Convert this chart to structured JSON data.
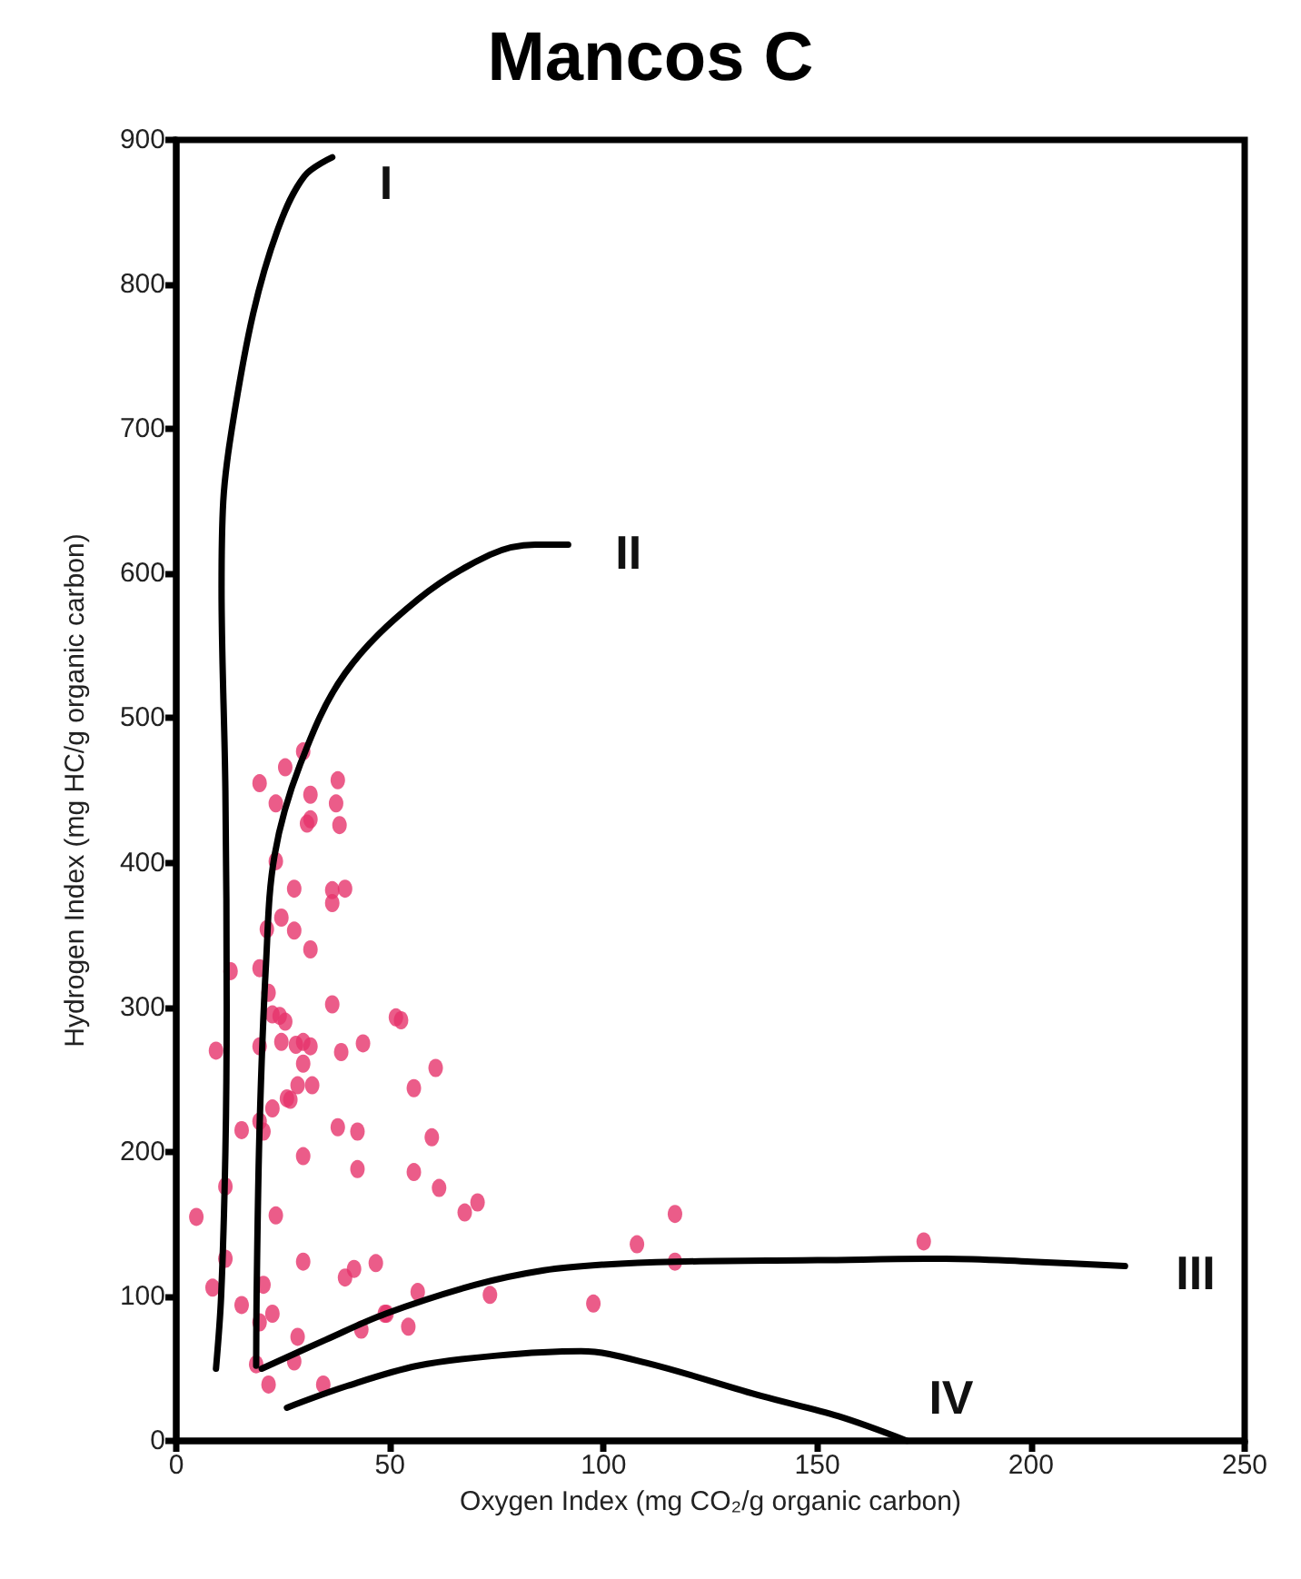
{
  "chart_data": {
    "type": "scatter",
    "title": "Mancos C",
    "xlabel": "Oxygen Index (mg CO₂/g organic carbon)",
    "ylabel": "Hydrogen Index (mg HC/g organic carbon)",
    "xlim": [
      0,
      250
    ],
    "xticks": [
      0,
      50,
      100,
      150,
      200,
      250
    ],
    "ylim": [
      0,
      900
    ],
    "yticks": [
      0,
      100,
      200,
      300,
      400,
      500,
      600,
      700,
      800,
      900
    ],
    "grid": false,
    "marker": "circle",
    "series": [
      {
        "color": "#e6336b",
        "x": [
          29.7,
          25.5,
          19.5,
          37.8,
          31.4,
          23.3,
          37.4,
          31.4,
          30.6,
          38.2,
          23.3,
          27.6,
          36.5,
          39.5,
          36.5,
          24.6,
          21.2,
          27.6,
          31.4,
          12.7,
          19.5,
          21.6,
          22.5,
          24.2,
          25.5,
          36.5,
          9.3,
          19.5,
          24.6,
          28,
          29.7,
          31.4,
          38.6,
          43.7,
          29.7,
          51.4,
          28.4,
          31.8,
          25.9,
          26.7,
          22.5,
          15.3,
          19.5,
          20.4,
          37.8,
          42.4,
          29.7,
          42.4,
          11.5,
          4.7,
          23.3,
          11.5,
          29.7,
          39.5,
          41.6,
          46.7,
          8.5,
          20.4,
          15.3,
          22.5,
          19.5,
          28.4,
          43.3,
          49.2,
          18.7,
          27.6,
          21.6,
          34.4,
          52.6,
          60.7,
          55.6,
          59.8,
          55.6,
          61.5,
          67.5,
          70.5,
          116.7,
          107.8,
          174.9,
          116.7,
          56.5,
          73.4,
          97.6,
          48.8,
          54.3
        ],
        "values": [
          477,
          466,
          455,
          457,
          447,
          441,
          441,
          430,
          427,
          426,
          401,
          382,
          381,
          382,
          372,
          362,
          354,
          353,
          340,
          325,
          327,
          310,
          295,
          294,
          290,
          302,
          270,
          273,
          276,
          274,
          276,
          273,
          269,
          275,
          261,
          293,
          246,
          246,
          237,
          236,
          230,
          215,
          221,
          214,
          217,
          214,
          197,
          188,
          176,
          155,
          156,
          126,
          124,
          113,
          119,
          123,
          106,
          108,
          94,
          88,
          82,
          72,
          77,
          88,
          53,
          55,
          39,
          39,
          291,
          258,
          244,
          210,
          186,
          175,
          158,
          165,
          157,
          136,
          138,
          124,
          103,
          101,
          95,
          88,
          79
        ]
      },
      {
        "type": "line",
        "name": "I",
        "color": "#000000",
        "marker": "none",
        "x": [
          9.3,
          10.5,
          11.5,
          11.8,
          11.5,
          10.6,
          11,
          13,
          18,
          24,
          30,
          36.5
        ],
        "values": [
          50,
          100,
          200,
          300,
          450,
          590,
          650,
          700,
          780,
          840,
          875,
          888
        ]
      },
      {
        "type": "line",
        "name": "II",
        "color": "#000000",
        "marker": "none",
        "x": [
          18.7,
          18.8,
          19.5,
          21,
          23,
          29,
          39.5,
          56.5,
          73.4,
          84,
          91.7
        ],
        "values": [
          52,
          100,
          217,
          330,
          405,
          468,
          531,
          582,
          613,
          620,
          620
        ]
      },
      {
        "type": "line",
        "name": "III",
        "color": "#000000",
        "marker": "none",
        "x": [
          20,
          35,
          49,
          70,
          86,
          100,
          117,
          150,
          180,
          200,
          222
        ],
        "values": [
          50,
          70,
          88,
          108,
          118,
          122,
          124,
          125,
          126,
          124,
          121
        ]
      },
      {
        "type": "line",
        "name": "IV",
        "color": "#000000",
        "marker": "none",
        "x": [
          25.9,
          40,
          56.5,
          75,
          94.7,
          110,
          137,
          155,
          171
        ],
        "values": [
          23,
          38,
          52,
          59,
          62,
          54,
          31,
          17,
          0
        ]
      }
    ]
  }
}
